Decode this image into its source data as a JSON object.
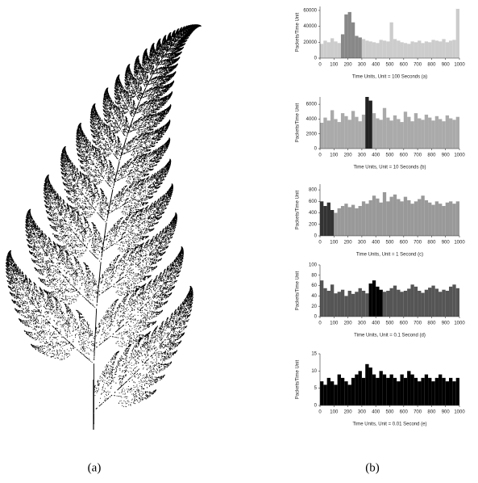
{
  "panels": {
    "a": "(a)",
    "b": "(b)"
  },
  "chart_data": [
    {
      "type": "bar",
      "ylabel": "Packets/Time Unit",
      "xlabel": "Time Units, Unit = 100 Seconds (a)",
      "color": "#cccccc",
      "highlight_color": "#888888",
      "highlight_range": [
        150,
        300
      ],
      "xlim": [
        0,
        1000
      ],
      "xticks": [
        0,
        100,
        200,
        300,
        400,
        500,
        600,
        700,
        800,
        900,
        1000
      ],
      "ylim": [
        0,
        65000
      ],
      "yticks": [
        0,
        20000,
        40000,
        60000
      ],
      "x": [
        0,
        25,
        50,
        75,
        100,
        125,
        150,
        175,
        200,
        225,
        250,
        275,
        300,
        325,
        350,
        375,
        400,
        425,
        450,
        475,
        500,
        525,
        550,
        575,
        600,
        625,
        650,
        675,
        700,
        725,
        750,
        775,
        800,
        825,
        850,
        875,
        900,
        925,
        950,
        975
      ],
      "values": [
        18000,
        22000,
        20000,
        25000,
        21000,
        19000,
        30000,
        55000,
        58000,
        45000,
        28000,
        26000,
        24000,
        22000,
        21000,
        20000,
        19000,
        23000,
        22000,
        21000,
        45000,
        24000,
        22000,
        20000,
        19000,
        18000,
        21000,
        20000,
        22000,
        19000,
        21000,
        20000,
        23000,
        22000,
        21000,
        24000,
        20000,
        22000,
        23000,
        62000
      ]
    },
    {
      "type": "bar",
      "ylabel": "Packets/Time Unit",
      "xlabel": "Time Units, Unit = 10 Seconds (b)",
      "color": "#aaaaaa",
      "highlight_color": "#222222",
      "highlight_range": [
        325,
        375
      ],
      "xlim": [
        0,
        1000
      ],
      "xticks": [
        0,
        100,
        200,
        300,
        400,
        500,
        600,
        700,
        800,
        900,
        1000
      ],
      "ylim": [
        0,
        7000
      ],
      "yticks": [
        0,
        2000,
        4000,
        6000
      ],
      "x": [
        0,
        25,
        50,
        75,
        100,
        125,
        150,
        175,
        200,
        225,
        250,
        275,
        300,
        325,
        350,
        375,
        400,
        425,
        450,
        475,
        500,
        525,
        550,
        575,
        600,
        625,
        650,
        675,
        700,
        725,
        750,
        775,
        800,
        825,
        850,
        875,
        900,
        925,
        950,
        975
      ],
      "values": [
        3500,
        4200,
        3800,
        5200,
        4000,
        3600,
        4800,
        4400,
        3900,
        5100,
        4300,
        3700,
        4600,
        7000,
        6500,
        4800,
        4100,
        3900,
        5500,
        4200,
        3800,
        4500,
        4000,
        3600,
        5000,
        4300,
        3700,
        4800,
        4100,
        3900,
        4600,
        4200,
        3800,
        4400,
        4000,
        3700,
        4500,
        4100,
        3900,
        4300
      ]
    },
    {
      "type": "bar",
      "ylabel": "Packets/Time Unit",
      "xlabel": "Time Units, Unit = 1 Second (c)",
      "color": "#999999",
      "highlight_color": "#333333",
      "highlight_range": [
        0,
        100
      ],
      "xlim": [
        0,
        1000
      ],
      "xticks": [
        0,
        100,
        200,
        300,
        400,
        500,
        600,
        700,
        800,
        900,
        1000
      ],
      "ylim": [
        0,
        900
      ],
      "yticks": [
        0,
        200,
        400,
        600,
        800
      ],
      "x": [
        0,
        25,
        50,
        75,
        100,
        125,
        150,
        175,
        200,
        225,
        250,
        275,
        300,
        325,
        350,
        375,
        400,
        425,
        450,
        475,
        500,
        525,
        550,
        575,
        600,
        625,
        650,
        675,
        700,
        725,
        750,
        775,
        800,
        825,
        850,
        875,
        900,
        925,
        950,
        975
      ],
      "values": [
        600,
        520,
        580,
        450,
        400,
        480,
        520,
        560,
        500,
        540,
        480,
        520,
        600,
        560,
        620,
        700,
        650,
        580,
        760,
        600,
        680,
        720,
        640,
        600,
        680,
        620,
        560,
        600,
        640,
        700,
        620,
        580,
        540,
        600,
        560,
        520,
        580,
        600,
        560,
        600
      ]
    },
    {
      "type": "bar",
      "ylabel": "Packets/Time Unit",
      "xlabel": "Time Units, Unit = 0.1 Second (d)",
      "color": "#555555",
      "highlight_color": "#000000",
      "highlight_range": [
        350,
        450
      ],
      "xlim": [
        0,
        1000
      ],
      "xticks": [
        0,
        100,
        200,
        300,
        400,
        500,
        600,
        700,
        800,
        900,
        1000
      ],
      "ylim": [
        0,
        100
      ],
      "yticks": [
        0,
        20,
        40,
        60,
        80,
        100
      ],
      "x": [
        0,
        25,
        50,
        75,
        100,
        125,
        150,
        175,
        200,
        225,
        250,
        275,
        300,
        325,
        350,
        375,
        400,
        425,
        450,
        475,
        500,
        525,
        550,
        575,
        600,
        625,
        650,
        675,
        700,
        725,
        750,
        775,
        800,
        825,
        850,
        875,
        900,
        925,
        950,
        975
      ],
      "values": [
        70,
        55,
        50,
        62,
        45,
        48,
        52,
        40,
        50,
        44,
        48,
        55,
        50,
        45,
        64,
        70,
        58,
        52,
        48,
        50,
        55,
        60,
        52,
        48,
        50,
        54,
        62,
        58,
        50,
        46,
        52,
        56,
        60,
        54,
        48,
        52,
        50,
        58,
        62,
        55
      ]
    },
    {
      "type": "bar",
      "ylabel": "Packets/Time Unit",
      "xlabel": "Time Units, Unit = 0.01 Second (e)",
      "color": "#000000",
      "highlight_color": "#000000",
      "highlight_range": [
        0,
        0
      ],
      "xlim": [
        0,
        1000
      ],
      "xticks": [
        0,
        100,
        200,
        300,
        400,
        500,
        600,
        700,
        800,
        900,
        1000
      ],
      "ylim": [
        0,
        15
      ],
      "yticks": [
        0,
        5,
        10,
        15
      ],
      "x": [
        0,
        25,
        50,
        75,
        100,
        125,
        150,
        175,
        200,
        225,
        250,
        275,
        300,
        325,
        350,
        375,
        400,
        425,
        450,
        475,
        500,
        525,
        550,
        575,
        600,
        625,
        650,
        675,
        700,
        725,
        750,
        775,
        800,
        825,
        850,
        875,
        900,
        925,
        950,
        975
      ],
      "values": [
        7,
        6,
        8,
        7,
        6,
        9,
        8,
        7,
        6,
        8,
        9,
        10,
        8,
        12,
        11,
        9,
        8,
        10,
        9,
        8,
        9,
        8,
        7,
        9,
        8,
        10,
        9,
        8,
        7,
        8,
        9,
        8,
        7,
        8,
        9,
        8,
        7,
        8,
        7,
        8
      ]
    }
  ]
}
